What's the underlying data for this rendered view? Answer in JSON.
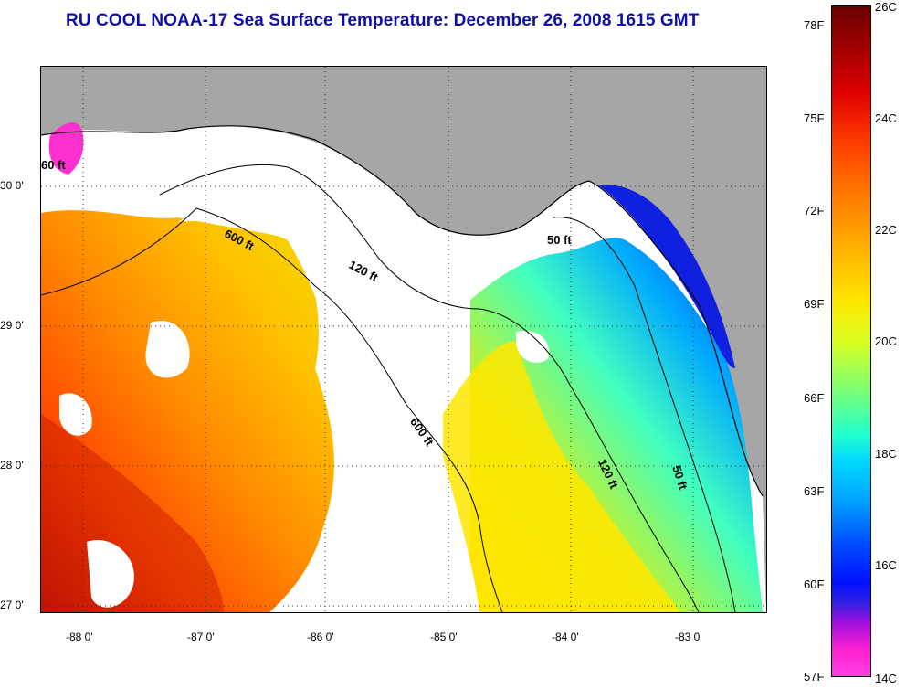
{
  "title": "RU COOL  NOAA-17  Sea Surface Temperature:  December 26, 2008 1615 GMT",
  "map": {
    "latitude_labels": [
      "30 0'",
      "29 0'",
      "28 0'",
      "27 0'"
    ],
    "longitude_labels": [
      "-88 0'",
      "-87 0'",
      "-86 0'",
      "-85 0'",
      "-84 0'",
      "-83 0'"
    ],
    "depth_contour_labels": [
      "60 ft",
      "600 ft",
      "120 ft",
      "50 ft",
      "600 ft",
      "120 ft",
      "50 ft"
    ],
    "colors": {
      "land": "#a6a6a6",
      "cloud": "#ffffff",
      "gridline": "#333333",
      "contour": "#000000"
    }
  },
  "colorbar": {
    "fahrenheit_labels": [
      "78F",
      "75F",
      "72F",
      "69F",
      "66F",
      "63F",
      "60F",
      "57F"
    ],
    "celsius_labels": [
      "26C",
      "24C",
      "22C",
      "20C",
      "18C",
      "16C",
      "14C"
    ],
    "range_celsius": [
      14,
      26
    ],
    "range_fahrenheit": [
      57,
      78
    ]
  }
}
